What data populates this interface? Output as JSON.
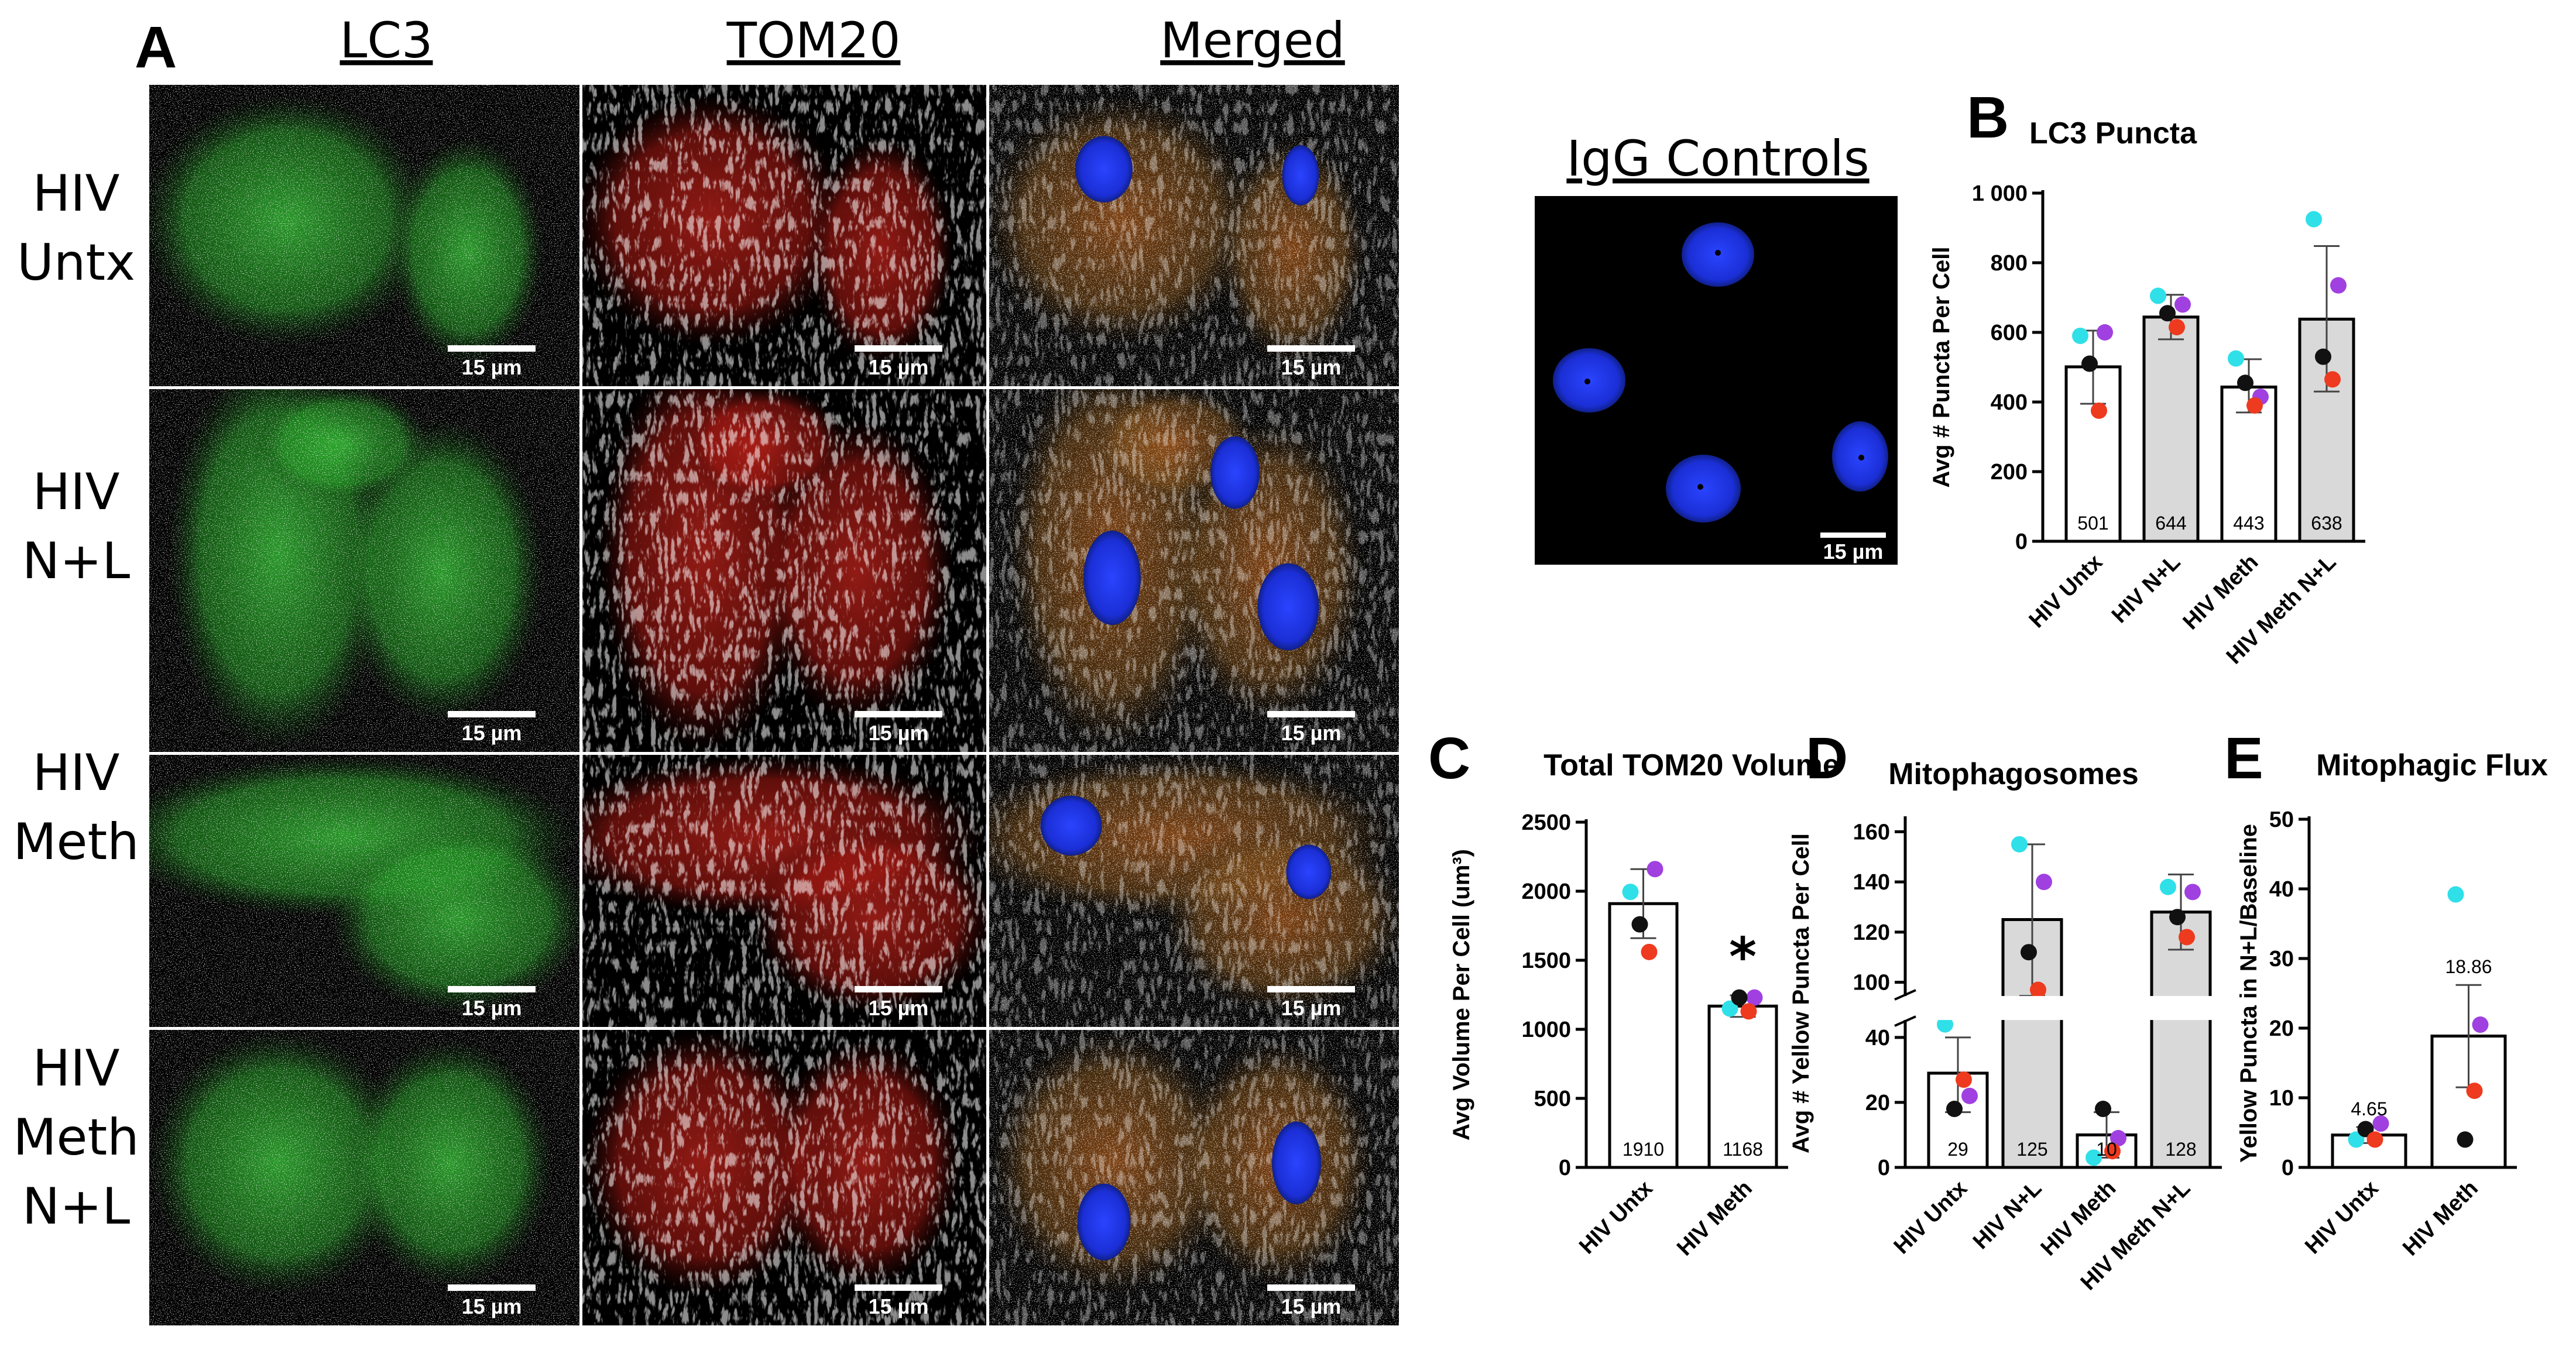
{
  "panel_a": {
    "letter": "A",
    "columns": [
      "LC3",
      "TOM20",
      "Merged"
    ],
    "rows": [
      {
        "line1": "HIV",
        "line2": "Untx"
      },
      {
        "line1": "HIV",
        "line2": "N+L"
      },
      {
        "line1": "HIV",
        "line2": "Meth"
      },
      {
        "line1": "HIV",
        "line2": "Meth",
        "line3": "N+L"
      }
    ],
    "scale_bar": "15 µm",
    "channel_colors": {
      "lc3": "#2fd12f",
      "tom20": "#e0221c",
      "nucleus": "#1e3ce6"
    }
  },
  "igg": {
    "title": "IgG Controls",
    "scale_bar": "15 µm"
  },
  "colors": {
    "replicate1": "#2fe0e8",
    "replicate2": "#a040e0",
    "replicate3": "#111111",
    "replicate4": "#ee3a1e",
    "bar_white": "#ffffff",
    "bar_gray": "#d9d9d9"
  },
  "chart_data": [
    {
      "id": "B",
      "letter": "B",
      "type": "bar",
      "title": "LC3 Puncta",
      "ylabel": "Avg # Puncta Per Cell",
      "categories": [
        "HIV Untx",
        "HIV N+L",
        "HIV Meth",
        "HIV Meth N+L"
      ],
      "values": [
        501,
        644,
        443,
        638
      ],
      "value_labels": [
        "501",
        "644",
        "443",
        "638"
      ],
      "error_low": [
        395,
        580,
        370,
        430
      ],
      "error_high": [
        605,
        708,
        523,
        848
      ],
      "bar_fill": [
        "white",
        "gray",
        "white",
        "gray"
      ],
      "points": [
        [
          590,
          600,
          510,
          375
        ],
        [
          705,
          680,
          655,
          615
        ],
        [
          525,
          415,
          455,
          390
        ],
        [
          925,
          735,
          530,
          465
        ]
      ],
      "ylim": [
        0,
        1000
      ],
      "yticks": [
        0,
        200,
        400,
        600,
        800,
        1000
      ],
      "ytick_labels": [
        "0",
        "200",
        "400",
        "600",
        "800",
        "1 000"
      ]
    },
    {
      "id": "C",
      "letter": "C",
      "type": "bar",
      "title": "Total TOM20 Volume",
      "ylabel": "Avg Volume Per Cell (um³)",
      "categories": [
        "HIV Untx",
        "HIV Meth"
      ],
      "values": [
        1910,
        1168
      ],
      "value_labels": [
        "1910",
        "1168"
      ],
      "error_low": [
        1660,
        1090
      ],
      "error_high": [
        2160,
        1246
      ],
      "bar_fill": [
        "white",
        "white"
      ],
      "points": [
        [
          1995,
          2160,
          1760,
          1560
        ],
        [
          1150,
          1230,
          1230,
          1130
        ]
      ],
      "ylim": [
        0,
        2500
      ],
      "yticks": [
        0,
        500,
        1000,
        1500,
        2000,
        2500
      ],
      "ytick_labels": [
        "0",
        "500",
        "1000",
        "1500",
        "2000",
        "2500"
      ],
      "annotation": "*"
    },
    {
      "id": "D",
      "letter": "D",
      "type": "bar",
      "title": "Mitophagosomes",
      "ylabel": "Avg # Yellow Puncta Per Cell",
      "categories": [
        "HIV Untx",
        "HIV N+L",
        "HIV Meth",
        "HIV Meth N+L"
      ],
      "values": [
        29,
        125,
        10,
        128
      ],
      "value_labels": [
        "29",
        "125",
        "10",
        "128"
      ],
      "error_low": [
        17,
        93,
        3,
        113
      ],
      "error_high": [
        40,
        155,
        17,
        143
      ],
      "bar_fill": [
        "white",
        "gray",
        "white",
        "gray"
      ],
      "points": [
        [
          44,
          22,
          18,
          27
        ],
        [
          155,
          140,
          112,
          97
        ],
        [
          3,
          9,
          18,
          5
        ],
        [
          138,
          136,
          126,
          118
        ]
      ],
      "broken_axis": {
        "lower": [
          0,
          45
        ],
        "upper": [
          95,
          165
        ]
      },
      "yticks_lower": [
        0,
        20,
        40
      ],
      "yticks_upper": [
        100,
        120,
        140,
        160
      ],
      "ytick_labels_lower": [
        "0",
        "20",
        "40"
      ],
      "ytick_labels_upper": [
        "100",
        "120",
        "140",
        "160"
      ]
    },
    {
      "id": "E",
      "letter": "E",
      "type": "bar",
      "title": "Mitophagic Flux",
      "ylabel": "Yellow Puncta in N+L/Baseline",
      "categories": [
        "HIV Untx",
        "HIV Meth"
      ],
      "values": [
        4.65,
        18.86
      ],
      "value_labels": [
        "4.65",
        "18.86"
      ],
      "error_low": [
        3.5,
        11.5
      ],
      "error_high": [
        5.8,
        26.2
      ],
      "bar_fill": [
        "white",
        "white"
      ],
      "points": [
        [
          4.0,
          6.3,
          5.5,
          4.0
        ],
        [
          39.2,
          20.5,
          4.0,
          11.0
        ]
      ],
      "ylim": [
        0,
        50
      ],
      "yticks": [
        0,
        10,
        20,
        30,
        40,
        50
      ],
      "ytick_labels": [
        "0",
        "10",
        "20",
        "30",
        "40",
        "50"
      ]
    }
  ]
}
